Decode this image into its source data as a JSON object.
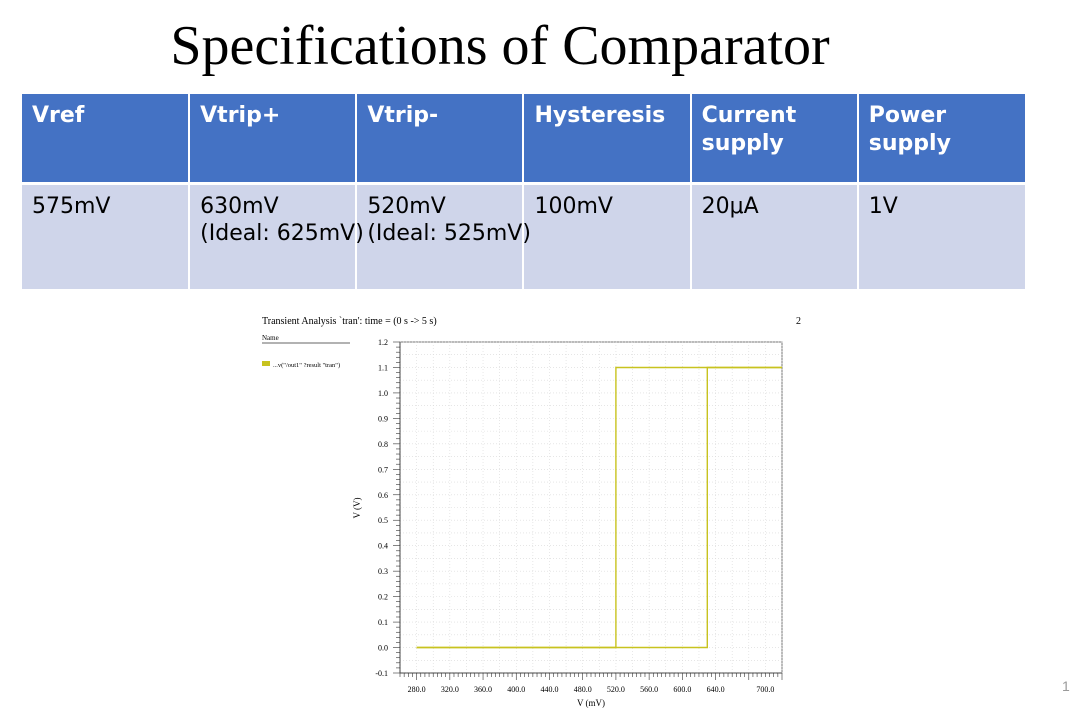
{
  "title": "Specifications of Comparator",
  "table": {
    "headers": [
      "Vref",
      "Vtrip+",
      "Vtrip-",
      "Hysteresis",
      "Current supply",
      "Power supply"
    ],
    "row": [
      {
        "main": "575mV",
        "sub": ""
      },
      {
        "main": "630mV",
        "sub": "(Ideal: 625mV)"
      },
      {
        "main": "520mV",
        "sub": "(Ideal: 525mV)"
      },
      {
        "main": "100mV",
        "sub": ""
      },
      {
        "main": "20μA",
        "sub": ""
      },
      {
        "main": "1V",
        "sub": ""
      }
    ]
  },
  "page_number": "1",
  "chart_data": {
    "type": "line",
    "title": "Transient Analysis `tran': time = (0 s -> 5 s)",
    "panel_number": "2",
    "legend_header": "Name",
    "legend_position": "top-left",
    "xlabel": "V (mV)",
    "ylabel": "V (V)",
    "xlim": [
      260,
      720
    ],
    "ylim": [
      -0.1,
      1.2
    ],
    "xticks": [
      "280.0",
      "320.0",
      "360.0",
      "400.0",
      "440.0",
      "480.0",
      "520.0",
      "560.0",
      "600.0",
      "640.0",
      "700.0"
    ],
    "yticks": [
      "1.2",
      "1.1",
      "1.0",
      "0.9",
      "0.8",
      "0.7",
      "0.6",
      "0.5",
      "0.4",
      "0.3",
      "0.2",
      "0.1",
      "0.0",
      "-0.1"
    ],
    "grid": true,
    "series": [
      {
        "name": "...v(\"/out1\" ?result \"tran\")",
        "color": "#c8c31f",
        "x": [
          280,
          520,
          520,
          720
        ],
        "y": [
          0.0,
          0.0,
          1.1,
          1.1
        ]
      },
      {
        "name": "",
        "color": "#c8c31f",
        "x": [
          280,
          630,
          630,
          720
        ],
        "y": [
          0.0,
          0.0,
          1.1,
          1.1
        ]
      }
    ]
  }
}
